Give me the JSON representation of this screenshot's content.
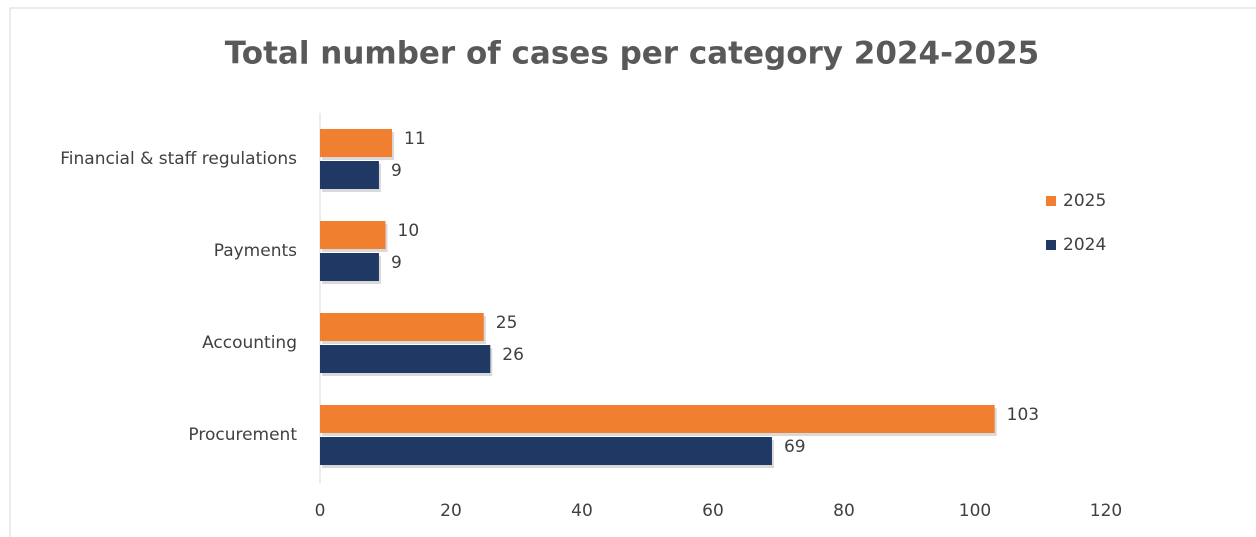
{
  "chart_data": {
    "type": "bar",
    "orientation": "horizontal",
    "title": "Total number of cases per category 2024-2025",
    "categories": [
      "Financial & staff regulations",
      "Payments",
      "Accounting",
      "Procurement"
    ],
    "series": [
      {
        "name": "2025",
        "color": "#f07f30",
        "values": [
          11,
          10,
          25,
          103
        ]
      },
      {
        "name": "2024",
        "color": "#203864",
        "values": [
          9,
          9,
          26,
          69
        ]
      }
    ],
    "xlim": [
      0,
      120
    ],
    "xticks": [
      0,
      20,
      40,
      60,
      80,
      100,
      120
    ],
    "grid": false,
    "legend": "right"
  }
}
